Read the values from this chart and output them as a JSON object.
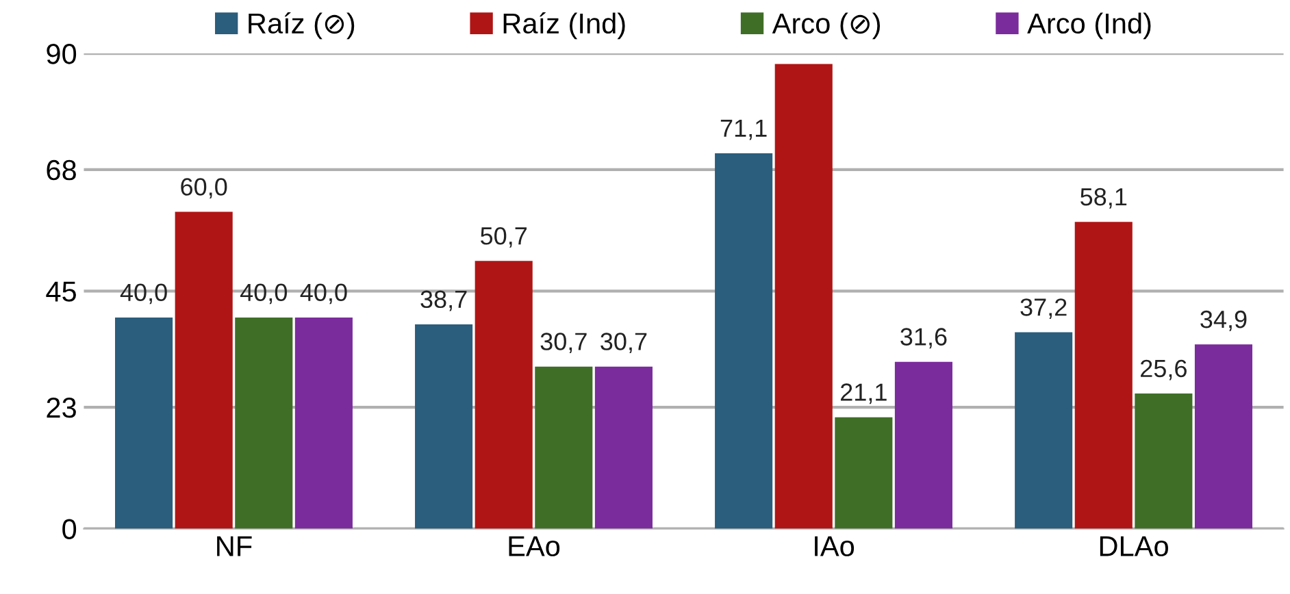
{
  "chart_data": {
    "type": "bar",
    "categories": [
      "NF",
      "EAo",
      "IAo",
      "DLAo"
    ],
    "series": [
      {
        "name": "Raíz (⊘)",
        "color": "#2b5d7c",
        "values": [
          40.0,
          38.7,
          71.1,
          37.2
        ],
        "value_labels": [
          "40,0",
          "38,7",
          "71,1",
          "37,2"
        ]
      },
      {
        "name": "Raíz (Ind)",
        "color": "#b01515",
        "values": [
          60.0,
          50.7,
          88,
          58.1
        ],
        "value_labels": [
          "60,0",
          "50,7",
          null,
          "58,1"
        ]
      },
      {
        "name": "Arco (⊘)",
        "color": "#3f6e27",
        "values": [
          40.0,
          30.7,
          21.1,
          25.6
        ],
        "value_labels": [
          "40,0",
          "30,7",
          "21,1",
          "25,6"
        ]
      },
      {
        "name": "Arco (Ind)",
        "color": "#7b2c9c",
        "values": [
          40.0,
          30.7,
          31.6,
          34.9
        ],
        "value_labels": [
          "40,0",
          "30,7",
          "31,6",
          "34,9"
        ]
      }
    ],
    "ylim": [
      0,
      90
    ],
    "yticks": [
      0,
      23,
      45,
      68,
      90
    ],
    "grid": "y",
    "legend": "top"
  }
}
